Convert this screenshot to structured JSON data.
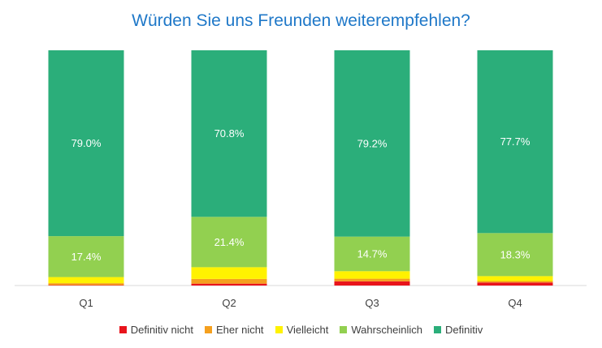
{
  "chart_data": {
    "type": "bar",
    "stacked": true,
    "title": "Würden Sie uns Freunden weiterempfehlen?",
    "categories": [
      "Q1",
      "Q2",
      "Q3",
      "Q4"
    ],
    "ylim": [
      0,
      100
    ],
    "grid": false,
    "legend_position": "bottom",
    "series": [
      {
        "name": "Definitiv nicht",
        "color": "#e8141c",
        "values": [
          0.2,
          0.8,
          1.8,
          1.3
        ],
        "labels": [
          "",
          "",
          "",
          ""
        ]
      },
      {
        "name": "Eher nicht",
        "color": "#f5a01e",
        "values": [
          0.8,
          2.0,
          1.1,
          0.6
        ],
        "labels": [
          "",
          "",
          "",
          ""
        ]
      },
      {
        "name": "Vielleicht",
        "color": "#fff200",
        "values": [
          2.6,
          5.0,
          3.2,
          2.1
        ],
        "labels": [
          "",
          "",
          "",
          ""
        ]
      },
      {
        "name": "Wahrscheinlich",
        "color": "#92d050",
        "values": [
          17.4,
          21.4,
          14.7,
          18.3
        ],
        "labels": [
          "17.4%",
          "21.4%",
          "14.7%",
          "18.3%"
        ]
      },
      {
        "name": "Definitiv",
        "color": "#2bae7a",
        "values": [
          79.0,
          70.8,
          79.2,
          77.7
        ],
        "labels": [
          "79.0%",
          "70.8%",
          "79.2%",
          "77.7%"
        ]
      }
    ]
  }
}
